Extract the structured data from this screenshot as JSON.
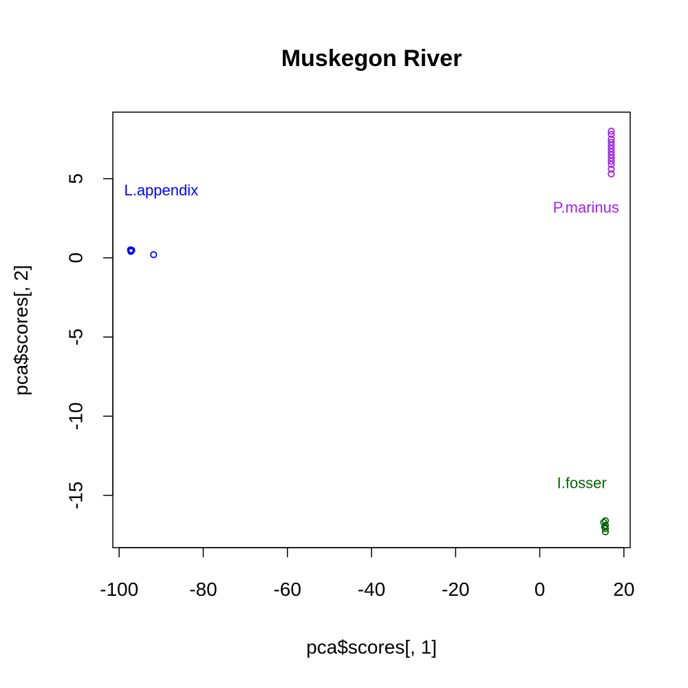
{
  "chart_data": {
    "type": "scatter",
    "title": "Muskegon River",
    "xlabel": "pca$scores[, 1]",
    "ylabel": "pca$scores[, 2]",
    "xlim": [
      -101.5,
      21.5
    ],
    "ylim": [
      -18.3,
      9.2
    ],
    "xticks": [
      -100,
      -80,
      -60,
      -40,
      -20,
      0,
      20
    ],
    "yticks": [
      5,
      0,
      -5,
      -10,
      -15
    ],
    "grid": false,
    "legend": "none",
    "series": [
      {
        "color": "#0000ff",
        "points": [
          {
            "x": -97.3,
            "y": 0.5
          },
          {
            "x": -97.1,
            "y": 0.45
          },
          {
            "x": -97.2,
            "y": 0.4
          },
          {
            "x": -97.0,
            "y": 0.48
          },
          {
            "x": -91.8,
            "y": 0.2
          }
        ]
      },
      {
        "color": "#a020f0",
        "points": [
          {
            "x": 17.0,
            "y": 8.0
          },
          {
            "x": 17.0,
            "y": 7.8
          },
          {
            "x": 17.0,
            "y": 7.5
          },
          {
            "x": 17.0,
            "y": 7.3
          },
          {
            "x": 17.0,
            "y": 7.1
          },
          {
            "x": 17.0,
            "y": 6.9
          },
          {
            "x": 17.0,
            "y": 6.7
          },
          {
            "x": 17.0,
            "y": 6.5
          },
          {
            "x": 17.0,
            "y": 6.3
          },
          {
            "x": 17.0,
            "y": 6.1
          },
          {
            "x": 17.0,
            "y": 5.9
          },
          {
            "x": 17.0,
            "y": 5.6
          },
          {
            "x": 17.0,
            "y": 5.3
          }
        ]
      },
      {
        "color": "#006400",
        "points": [
          {
            "x": 15.6,
            "y": -16.6
          },
          {
            "x": 15.2,
            "y": -16.7
          },
          {
            "x": 15.6,
            "y": -16.9
          },
          {
            "x": 15.6,
            "y": -17.1
          },
          {
            "x": 15.6,
            "y": -17.3
          },
          {
            "x": 15.4,
            "y": -17.0
          }
        ]
      }
    ],
    "annotations": [
      {
        "text": "L.appendix",
        "x": -90,
        "y": 4.2,
        "color": "#0000ff"
      },
      {
        "text": "P.marinus",
        "x": 11,
        "y": 3.1,
        "color": "#a020f0"
      },
      {
        "text": "I.fosser",
        "x": 10,
        "y": -14.3,
        "color": "#006400"
      }
    ]
  }
}
